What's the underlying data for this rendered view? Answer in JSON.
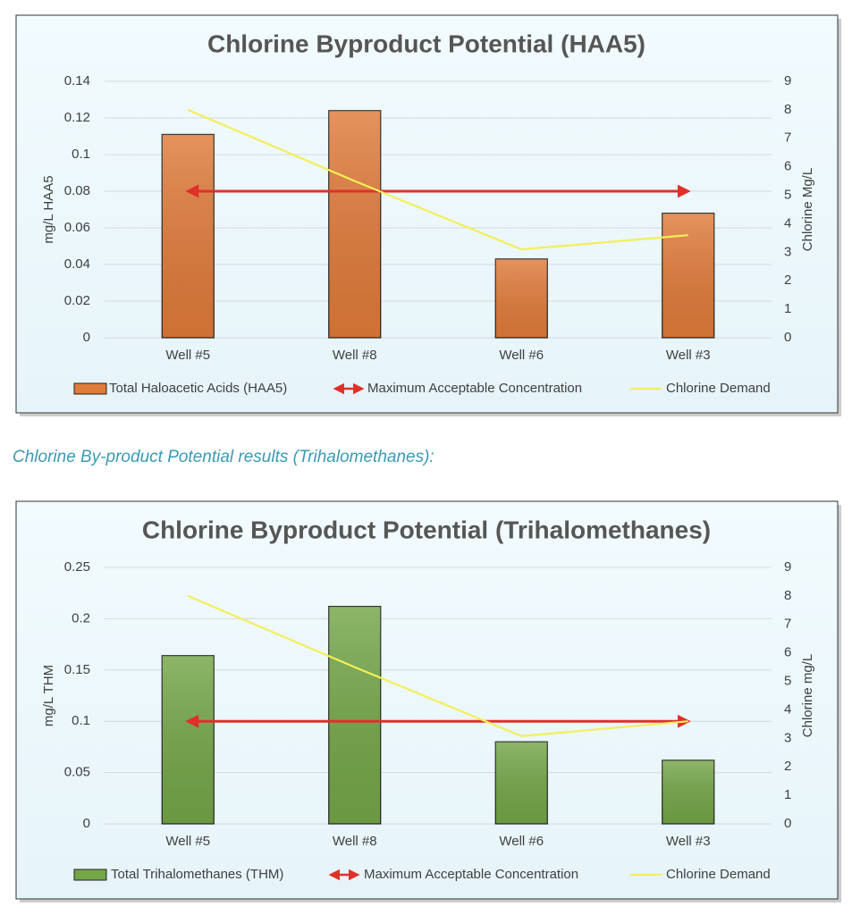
{
  "caption": "Chlorine By-product Potential results (Trihalomethanes):",
  "chart_data": [
    {
      "type": "bar",
      "title": "Chlorine Byproduct Potential (HAA5)",
      "categories": [
        "Well #5",
        "Well #8",
        "Well #6",
        "Well #3"
      ],
      "series": [
        {
          "name": "Total Haloacetic Acids (HAA5)",
          "color": "#e07b3a",
          "values": [
            0.111,
            0.124,
            0.043,
            0.068
          ]
        },
        {
          "name": "Maximum Acceptable Concentration",
          "color": "#e0302a",
          "values": [
            0.08,
            0.08,
            0.08,
            0.08
          ]
        },
        {
          "name": "Chlorine Demand",
          "color": "#f3ee5a",
          "axis": "y2",
          "values": [
            8.0,
            5.5,
            3.1,
            3.6
          ]
        }
      ],
      "ylabel": "mg/L HAA5",
      "y2label": "Chlorine Mg/L",
      "ylim": [
        0,
        0.14
      ],
      "yticks": [
        0,
        0.02,
        0.04,
        0.06,
        0.08,
        0.1,
        0.12,
        0.14
      ],
      "y2lim": [
        0,
        9
      ],
      "y2ticks": [
        0,
        1,
        2,
        3,
        4,
        5,
        6,
        7,
        8,
        9
      ],
      "grid": true,
      "legend": "bottom"
    },
    {
      "type": "bar",
      "title": "Chlorine Byproduct Potential (Trihalomethanes)",
      "categories": [
        "Well #5",
        "Well #8",
        "Well #6",
        "Well #3"
      ],
      "series": [
        {
          "name": "Total Trihalomethanes (THM)",
          "color": "#74a648",
          "values": [
            0.164,
            0.212,
            0.08,
            0.062
          ]
        },
        {
          "name": "Maximum Acceptable Concentration",
          "color": "#e0302a",
          "values": [
            0.1,
            0.1,
            0.1,
            0.1
          ]
        },
        {
          "name": "Chlorine Demand",
          "color": "#f3ee5a",
          "axis": "y2",
          "values": [
            8.0,
            5.5,
            3.08,
            3.6
          ]
        }
      ],
      "ylabel": "mg/L THM",
      "y2label": "Chlorine mg/L",
      "ylim": [
        0,
        0.25
      ],
      "yticks": [
        0,
        0.05,
        0.1,
        0.15,
        0.2,
        0.25
      ],
      "y2lim": [
        0,
        9
      ],
      "y2ticks": [
        0,
        1,
        2,
        3,
        4,
        5,
        6,
        7,
        8,
        9
      ],
      "grid": true,
      "legend": "bottom"
    }
  ]
}
